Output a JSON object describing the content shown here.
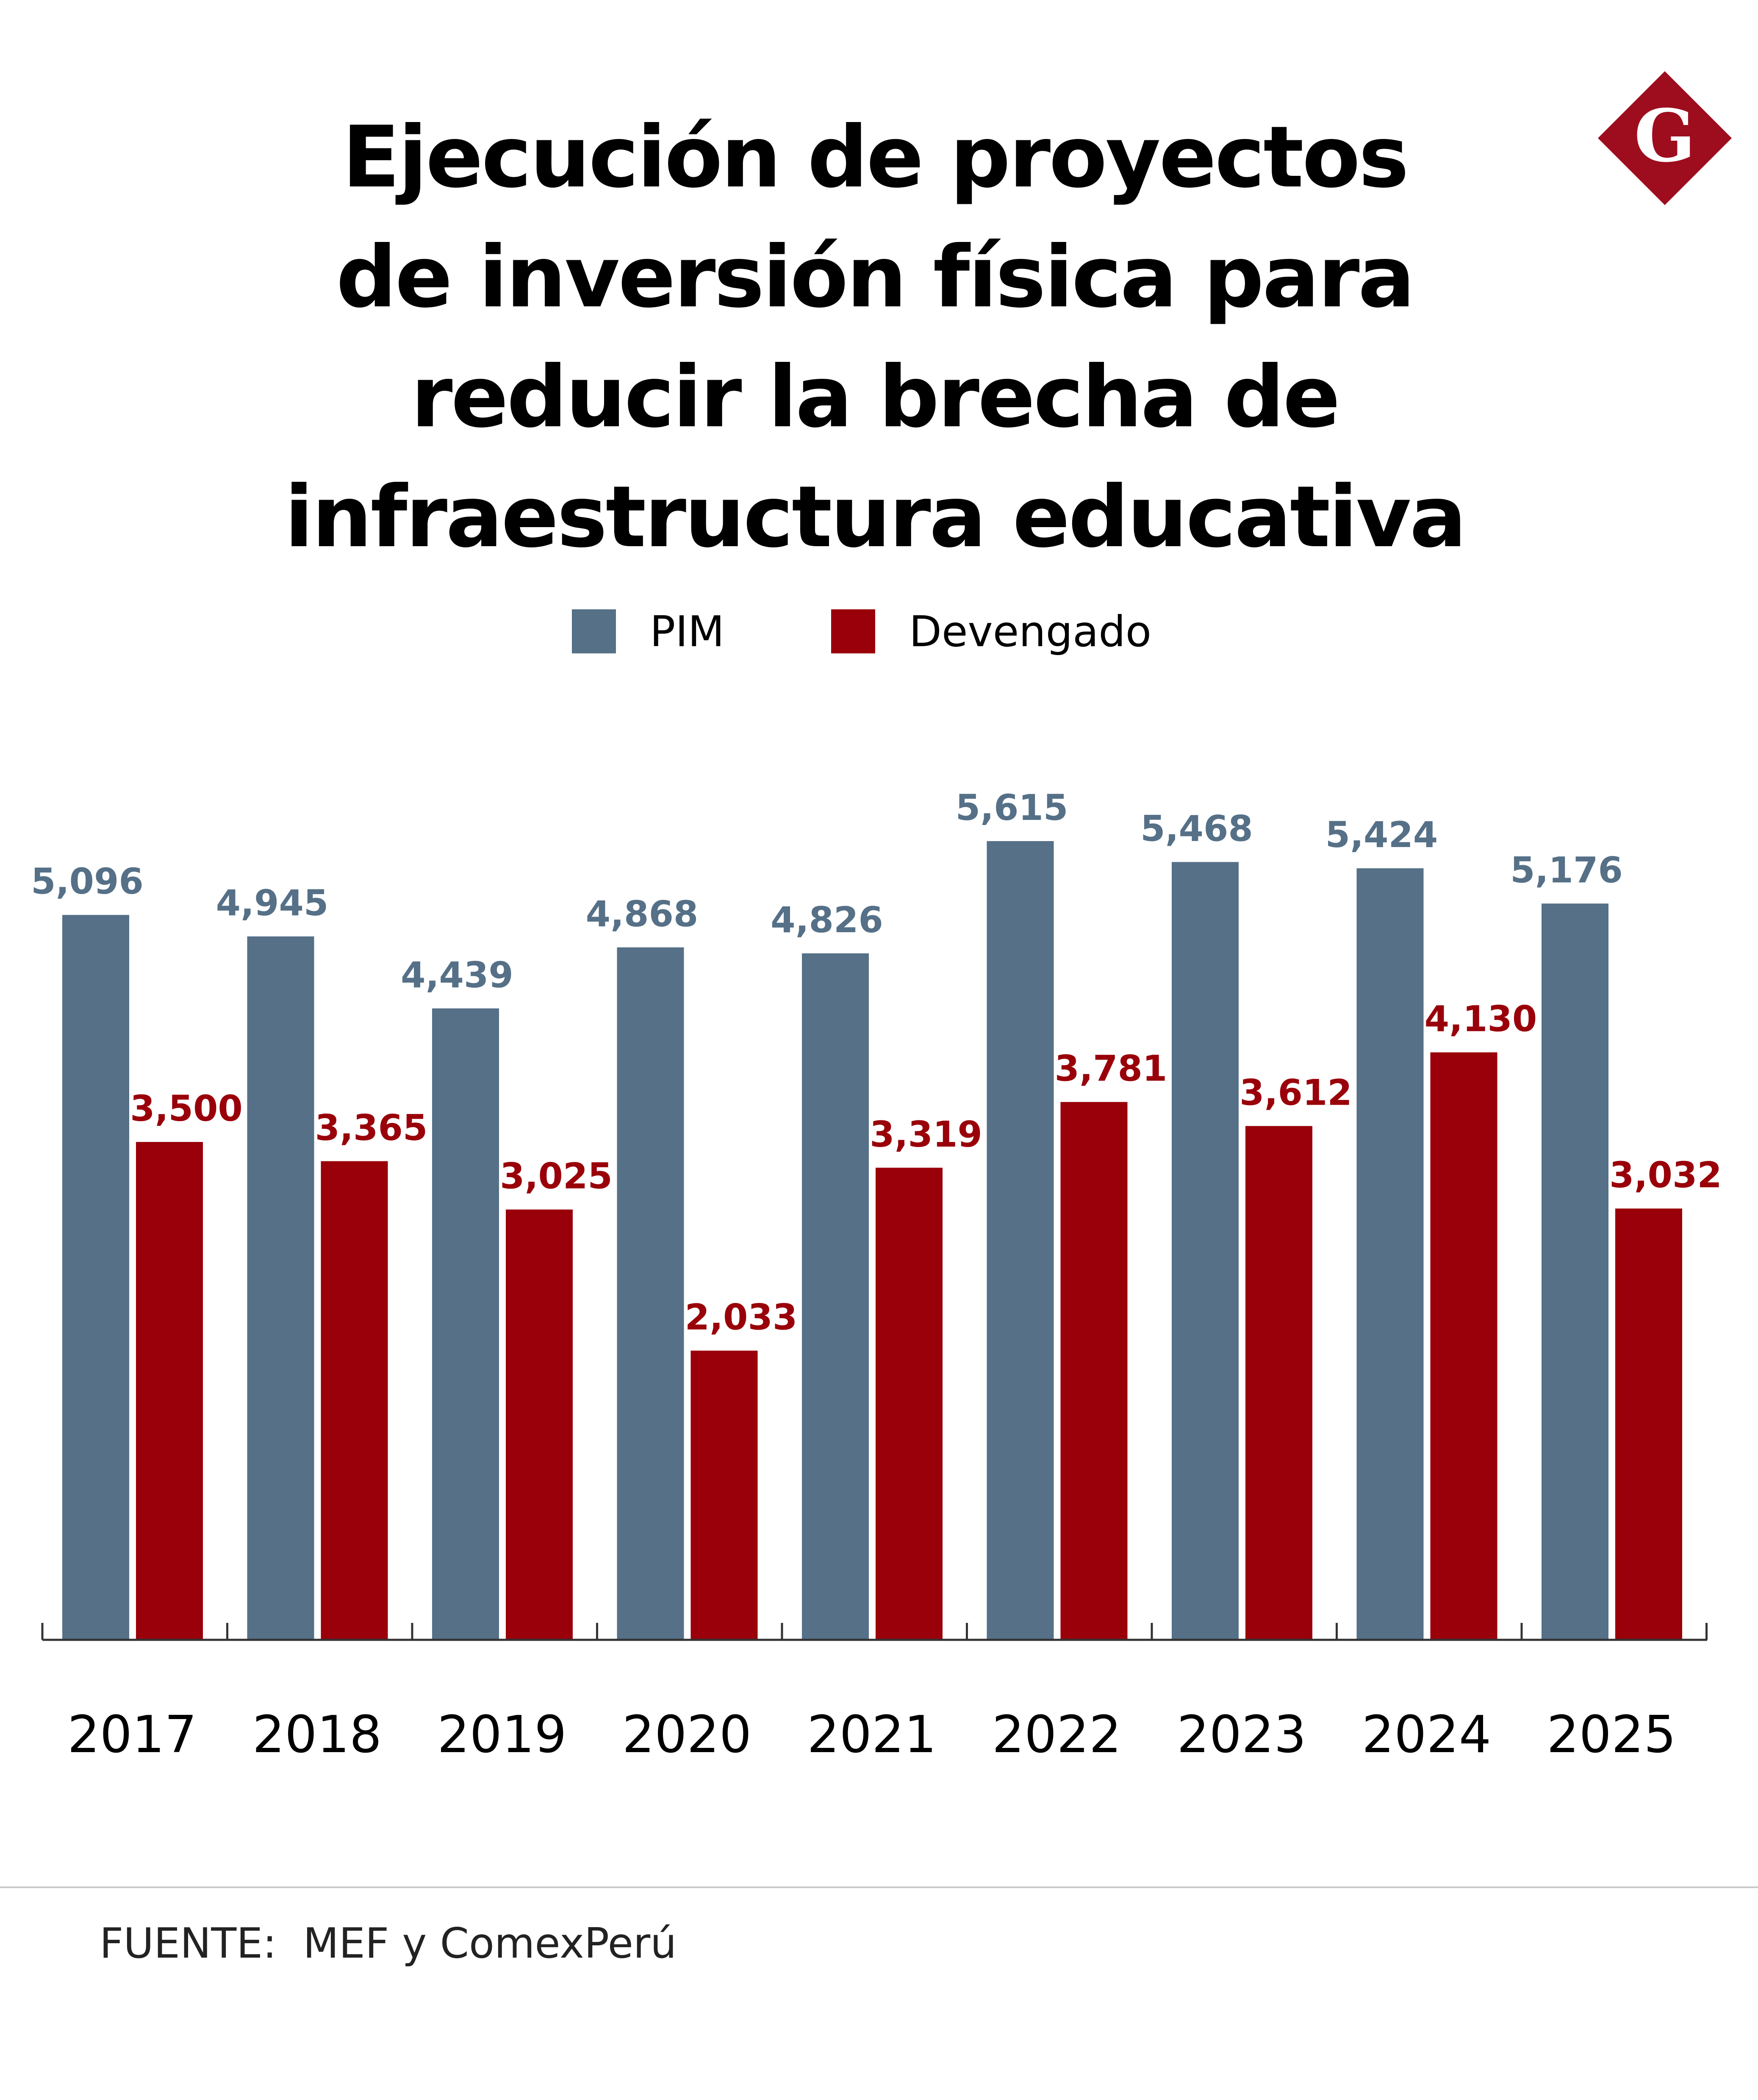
{
  "title_lines": [
    "Ejecución de proyectos",
    "de inversión física para",
    "reducir la brecha de",
    "infraestructura educativa"
  ],
  "logo": {
    "letter": "G",
    "color": "#9e0d1e",
    "icon": "diamond-g-logo"
  },
  "source": "FUENTE:  MEF y ComexPerú",
  "colors": {
    "pim": "#557087",
    "devengado": "#990009",
    "axis": "#333333"
  },
  "chart_data": {
    "type": "bar",
    "categories": [
      "2017",
      "2018",
      "2019",
      "2020",
      "2021",
      "2022",
      "2023",
      "2024",
      "2025"
    ],
    "series": [
      {
        "name": "PIM",
        "values": [
          5096,
          4945,
          4439,
          4868,
          4826,
          5615,
          5468,
          5424,
          5176
        ],
        "labels": [
          "5,096",
          "4,945",
          "4,439",
          "4,868",
          "4,826",
          "5,615",
          "5,468",
          "5,424",
          "5,176"
        ]
      },
      {
        "name": "Devengado",
        "values": [
          3500,
          3365,
          3025,
          2033,
          3319,
          3781,
          3612,
          4130,
          3032
        ],
        "labels": [
          "3,500",
          "3,365",
          "3,025",
          "2,033",
          "3,319",
          "3,781",
          "3,612",
          "4,130",
          "3,032"
        ]
      }
    ],
    "ylim": [
      0,
      5615
    ],
    "grid": false,
    "legend_position": "top-center"
  }
}
